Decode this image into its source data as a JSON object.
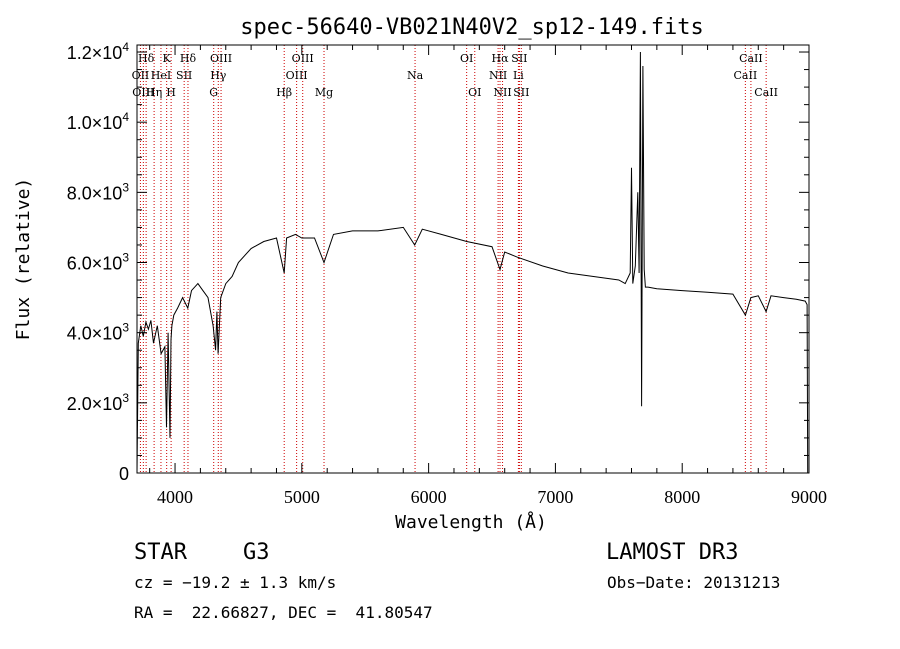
{
  "chart_data": {
    "type": "line",
    "title": "spec-56640-VB021N40V2_sp12-149.fits",
    "xlabel": "Wavelength (Å)",
    "ylabel": "Flux (relative)",
    "xlim": [
      3700,
      9000
    ],
    "ylim": [
      0,
      12200
    ],
    "x_ticks": [
      4000,
      5000,
      6000,
      7000,
      8000,
      9000
    ],
    "x_tick_labels": [
      "4000",
      "5000",
      "6000",
      "7000",
      "8000",
      "9000"
    ],
    "y_ticks": [
      0,
      2000,
      4000,
      6000,
      8000,
      10000,
      12000
    ],
    "y_tick_labels": [
      {
        "mantissa": "0",
        "exponent": ""
      },
      {
        "mantissa": "2.0×10",
        "exponent": "3"
      },
      {
        "mantissa": "4.0×10",
        "exponent": "3"
      },
      {
        "mantissa": "6.0×10",
        "exponent": "3"
      },
      {
        "mantissa": "8.0×10",
        "exponent": "3"
      },
      {
        "mantissa": "1.0×10",
        "exponent": "4"
      },
      {
        "mantissa": "1.2×10",
        "exponent": "4"
      }
    ],
    "series": [
      {
        "name": "flux",
        "x": [
          3700,
          3710,
          3730,
          3750,
          3770,
          3790,
          3810,
          3830,
          3860,
          3890,
          3920,
          3933,
          3945,
          3960,
          3968,
          3975,
          3990,
          4020,
          4060,
          4101,
          4130,
          4180,
          4220,
          4260,
          4300,
          4320,
          4330,
          4340,
          4360,
          4400,
          4450,
          4500,
          4600,
          4700,
          4800,
          4861,
          4880,
          4950,
          5000,
          5100,
          5175,
          5250,
          5400,
          5600,
          5800,
          5890,
          5950,
          6100,
          6300,
          6500,
          6563,
          6600,
          6700,
          6900,
          7100,
          7300,
          7500,
          7550,
          7590,
          7600,
          7610,
          7630,
          7650,
          7660,
          7670,
          7680,
          7690,
          7700,
          7710,
          7730,
          7800,
          8000,
          8200,
          8400,
          8498,
          8542,
          8600,
          8662,
          8700,
          8800,
          8900,
          8970,
          8985,
          8990
        ],
        "y": [
          0,
          3700,
          4200,
          3900,
          4300,
          4100,
          4350,
          3700,
          4200,
          3400,
          3600,
          1300,
          4000,
          1000,
          3800,
          4200,
          4500,
          4700,
          5000,
          4700,
          5200,
          5400,
          5200,
          5000,
          4200,
          3500,
          4600,
          3400,
          5000,
          5400,
          5600,
          6000,
          6400,
          6600,
          6700,
          5700,
          6700,
          6800,
          6700,
          6700,
          6000,
          6800,
          6900,
          6900,
          7000,
          6500,
          6950,
          6800,
          6600,
          6450,
          5800,
          6300,
          6150,
          5900,
          5700,
          5600,
          5500,
          5400,
          5700,
          8700,
          5400,
          5900,
          8000,
          5700,
          12000,
          1900,
          11600,
          5800,
          5300,
          5300,
          5250,
          5200,
          5150,
          5100,
          4500,
          5000,
          5050,
          4600,
          5050,
          5000,
          4950,
          4900,
          4800,
          0
        ]
      }
    ],
    "line_annotations": [
      {
        "label": "Hδ",
        "x": 3772,
        "row": 1
      },
      {
        "label": "OII",
        "x": 3727,
        "row": 2
      },
      {
        "label": "OIII",
        "x": 3750,
        "row": 3
      },
      {
        "label": "K",
        "x": 3934,
        "row": 1
      },
      {
        "label": "HeI",
        "x": 3889,
        "row": 2
      },
      {
        "label": "Hη",
        "x": 3835,
        "row": 3
      },
      {
        "label": "Hδ",
        "x": 4102,
        "row": 1
      },
      {
        "label": "SII",
        "x": 4072,
        "row": 2
      },
      {
        "label": "H",
        "x": 3969,
        "row": 3
      },
      {
        "label": "OIII",
        "x": 4363,
        "row": 1
      },
      {
        "label": "Hγ",
        "x": 4341,
        "row": 2
      },
      {
        "label": "G",
        "x": 4305,
        "row": 3
      },
      {
        "label": "OIII",
        "x": 5007,
        "row": 1
      },
      {
        "label": "OIII",
        "x": 4959,
        "row": 2
      },
      {
        "label": "Hβ",
        "x": 4861,
        "row": 3
      },
      {
        "label": "Mg",
        "x": 5175,
        "row": 3
      },
      {
        "label": "Na",
        "x": 5893,
        "row": 2
      },
      {
        "label": "OI",
        "x": 6300,
        "row": 1
      },
      {
        "label": "OI",
        "x": 6364,
        "row": 3
      },
      {
        "label": "Hα",
        "x": 6563,
        "row": 1
      },
      {
        "label": "SII",
        "x": 6716,
        "row": 1
      },
      {
        "label": "NII",
        "x": 6548,
        "row": 2
      },
      {
        "label": "Li",
        "x": 6708,
        "row": 2
      },
      {
        "label": "NII",
        "x": 6583,
        "row": 3
      },
      {
        "label": "SII",
        "x": 6731,
        "row": 3
      },
      {
        "label": "CaII",
        "x": 8542,
        "row": 1
      },
      {
        "label": "CaII",
        "x": 8498,
        "row": 2
      },
      {
        "label": "CaII",
        "x": 8662,
        "row": 3
      }
    ],
    "colors": {
      "axes": "#000000",
      "spectrum": "#000000",
      "line_markers": "#cc0000",
      "background": "#ffffff"
    },
    "grid": false
  },
  "info": {
    "object_class": "STAR",
    "subclass": "G3",
    "survey": "LAMOST DR3",
    "redshift": "cz = −19.2 ± 1.3 km/s",
    "obs_date": "Obs−Date: 20131213",
    "coords": "RA =  22.66827, DEC =  41.80547"
  }
}
